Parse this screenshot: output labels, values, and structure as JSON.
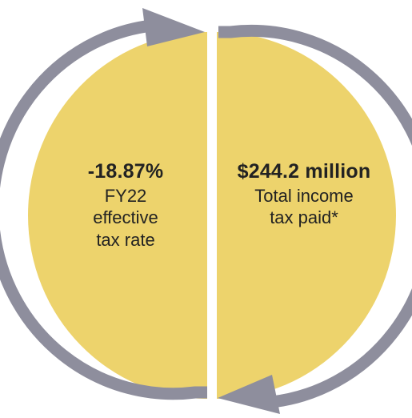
{
  "colors": {
    "fill": "#EDD36C",
    "arrow": "#8E8E9D",
    "text": "#222222"
  },
  "left": {
    "value": "-18.87%",
    "lines": [
      "FY22",
      "effective",
      "tax rate"
    ]
  },
  "right": {
    "value": "$244.2 million",
    "lines": [
      "Total income",
      "tax paid*"
    ]
  }
}
